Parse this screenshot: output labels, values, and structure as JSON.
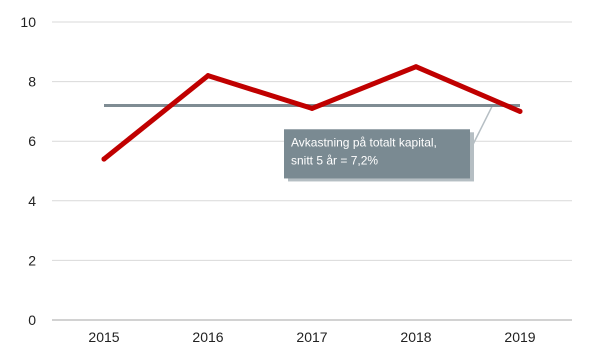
{
  "chart_data": {
    "type": "line",
    "categories": [
      "2015",
      "2016",
      "2017",
      "2018",
      "2019"
    ],
    "series": [
      {
        "values": [
          5.4,
          8.2,
          7.1,
          8.5,
          7.0
        ],
        "color": "#c00000"
      }
    ],
    "reference_line": {
      "value": 7.2,
      "color": "#7f8c93"
    },
    "annotation": {
      "lines": [
        "Avkastning på totalt kapital,",
        "snitt 5 år = 7,2%"
      ],
      "background": "#7a8a92",
      "shadow": "#b5bec3"
    },
    "ylim": [
      0,
      10
    ],
    "yticks": [
      "0",
      "2",
      "4",
      "6",
      "8",
      "10"
    ],
    "grid": true,
    "gridline_color": "#d9d9d9",
    "axis_color": "#a6a6a6"
  }
}
